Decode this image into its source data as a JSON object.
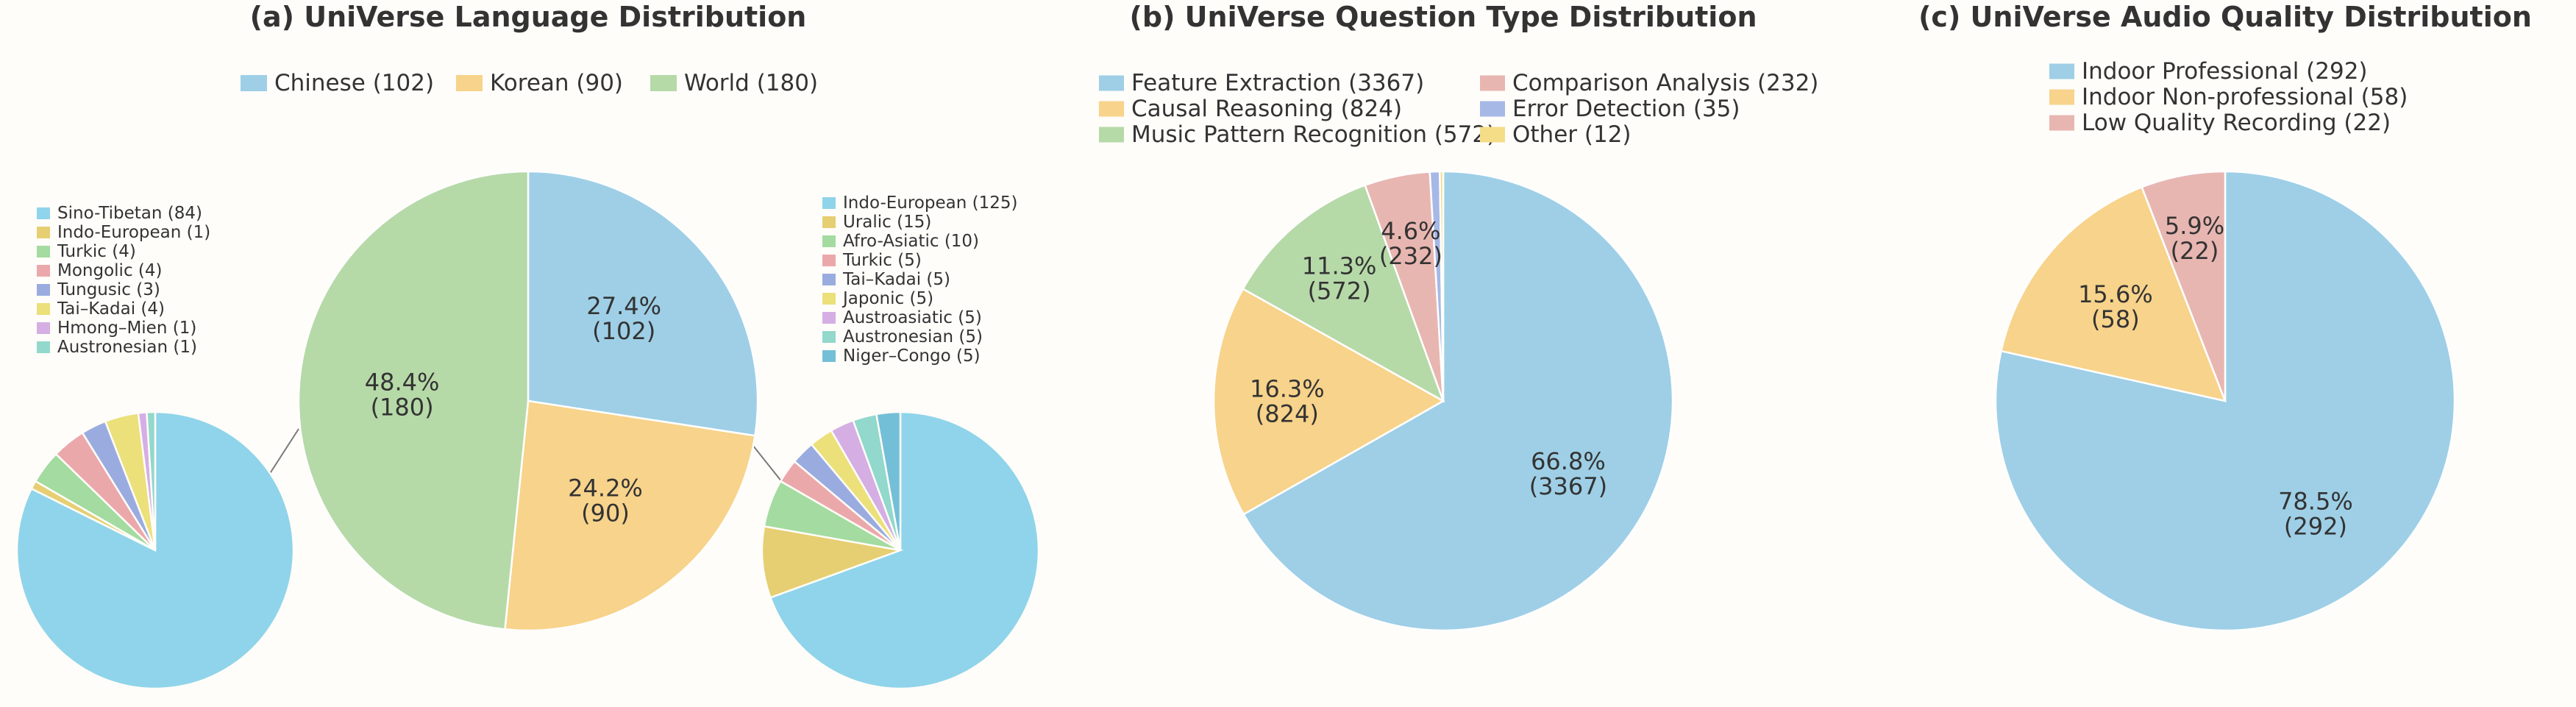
{
  "chart_data": [
    {
      "type": "pie",
      "title": "(a)  UniVerse Language Distribution",
      "legend_position": "top",
      "categories": [
        "Chinese (102)",
        "Korean (90)",
        "World (180)"
      ],
      "values": [
        102,
        90,
        180
      ],
      "percent_labels": [
        "27.4%",
        "24.2%",
        "48.4%"
      ],
      "value_labels": [
        "(102)",
        "(90)",
        "(180)"
      ],
      "colors": [
        "#9ecfe6",
        "#f7d38b",
        "#b6d9a8"
      ],
      "sub_pies": [
        {
          "type": "pie",
          "parent": "Chinese",
          "legend_position": "top",
          "categories": [
            "Sino-Tibetan (84)",
            "Indo-European (1)",
            "Turkic (4)",
            "Mongolic (4)",
            "Tungusic (3)",
            "Tai–Kadai (4)",
            "Hmong–Mien (1)",
            "Austronesian (1)"
          ],
          "values": [
            84,
            1,
            4,
            4,
            3,
            4,
            1,
            1
          ],
          "colors": [
            "#8fd4ea",
            "#e6cf72",
            "#a3dba0",
            "#eba8ab",
            "#9aacdf",
            "#ebe07a",
            "#d5aee4",
            "#92d8cc"
          ]
        },
        {
          "type": "pie",
          "parent": "World",
          "legend_position": "top",
          "categories": [
            "Indo-European (125)",
            "Uralic (15)",
            "Afro-Asiatic (10)",
            "Turkic (5)",
            "Tai–Kadai (5)",
            "Japonic (5)",
            "Austroasiatic (5)",
            "Austronesian (5)",
            "Niger–Congo (5)"
          ],
          "values": [
            125,
            15,
            10,
            5,
            5,
            5,
            5,
            5,
            5
          ],
          "colors": [
            "#8fd4ea",
            "#e6cf72",
            "#a3dba0",
            "#eba8ab",
            "#9aacdf",
            "#ebe07a",
            "#d5aee4",
            "#92d8cc",
            "#74bfd8"
          ]
        }
      ]
    },
    {
      "type": "pie",
      "title": "(b)  UniVerse Question Type Distribution",
      "legend_position": "top",
      "categories": [
        "Feature Extraction (3367)",
        "Causal Reasoning (824)",
        "Music Pattern Recognition (572)",
        "Comparison Analysis (232)",
        "Error Detection (35)",
        "Other (12)"
      ],
      "values": [
        3367,
        824,
        572,
        232,
        35,
        12
      ],
      "percent_labels": [
        "66.8%",
        "16.3%",
        "11.3%",
        "4.6%",
        "",
        ""
      ],
      "value_labels": [
        "(3367)",
        "(824)",
        "(572)",
        "(232)",
        "",
        ""
      ],
      "colors": [
        "#9ecfe6",
        "#f7d38b",
        "#b6d9a8",
        "#e8b6b1",
        "#a6b8e6",
        "#f5dd88"
      ]
    },
    {
      "type": "pie",
      "title": "(c)  UniVerse Audio Quality Distribution",
      "legend_position": "top",
      "categories": [
        "Indoor Professional (292)",
        "Indoor Non-professional (58)",
        "Low Quality Recording (22)"
      ],
      "values": [
        292,
        58,
        22
      ],
      "percent_labels": [
        "78.5%",
        "15.6%",
        "5.9%"
      ],
      "value_labels": [
        "(292)",
        "(58)",
        "(22)"
      ],
      "colors": [
        "#9ecfe6",
        "#f7d38b",
        "#e8b6b1"
      ]
    }
  ]
}
